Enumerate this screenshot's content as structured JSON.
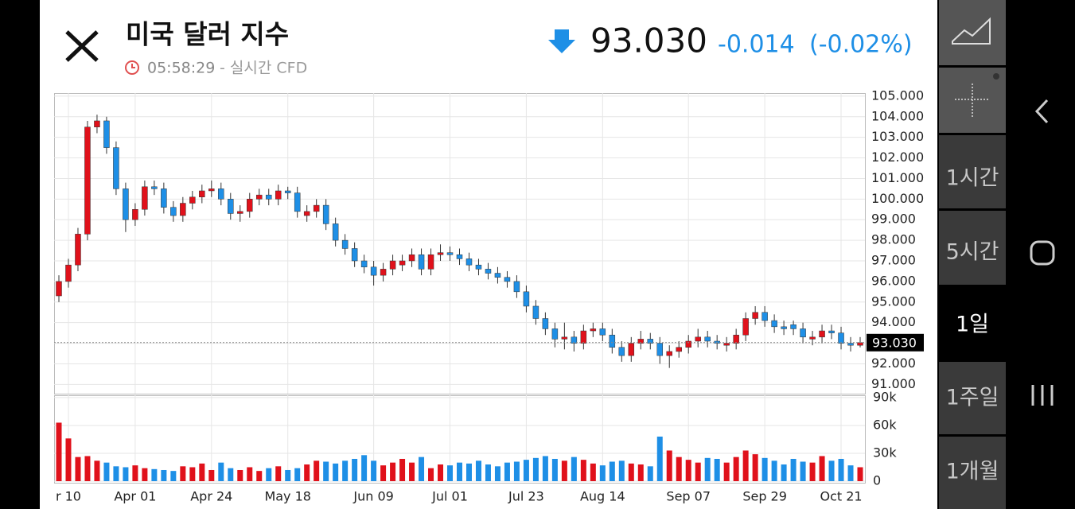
{
  "header": {
    "title": "미국 달러 지수",
    "time": "05:58:29",
    "source": "- 실시간 CFD",
    "price": "93.030",
    "change": "-0.014",
    "change_pct": "(-0.02%)"
  },
  "toolbar": {
    "intervals": [
      "1시간",
      "5시간",
      "1일",
      "1주일",
      "1개월"
    ]
  },
  "chart_data": {
    "type": "candlestick",
    "categories": [
      null,
      "r 10",
      null,
      null,
      null,
      null,
      null,
      null,
      "Apr 01",
      null,
      null,
      null,
      null,
      null,
      null,
      null,
      "Apr 24",
      null,
      null,
      null,
      null,
      null,
      null,
      null,
      "May 18",
      null,
      null,
      null,
      null,
      null,
      null,
      null,
      null,
      "Jun 09",
      null,
      null,
      null,
      null,
      null,
      null,
      null,
      "Jul 01",
      null,
      null,
      null,
      null,
      null,
      null,
      null,
      "Jul 23",
      null,
      null,
      null,
      null,
      null,
      null,
      null,
      "Aug 14",
      null,
      null,
      null,
      null,
      null,
      null,
      null,
      null,
      "Sep 07",
      null,
      null,
      null,
      null,
      null,
      null,
      null,
      "Sep 29",
      null,
      null,
      null,
      null,
      null,
      null,
      null,
      "Oct 21",
      null,
      null
    ],
    "open": [
      95.3,
      96.0,
      96.8,
      98.3,
      103.5,
      103.8,
      102.5,
      100.5,
      99.0,
      99.5,
      100.6,
      100.5,
      99.6,
      99.2,
      99.8,
      100.1,
      100.4,
      100.5,
      100.0,
      99.3,
      99.4,
      100.0,
      100.2,
      100.0,
      100.4,
      100.3,
      99.2,
      99.4,
      99.7,
      98.8,
      98.0,
      97.6,
      97.0,
      96.7,
      96.3,
      96.6,
      96.8,
      97.0,
      97.3,
      96.6,
      97.3,
      97.4,
      97.3,
      97.1,
      96.8,
      96.6,
      96.4,
      96.2,
      96.0,
      95.5,
      94.8,
      94.2,
      93.7,
      93.2,
      93.3,
      93.0,
      93.6,
      93.7,
      93.4,
      92.8,
      92.4,
      93.0,
      93.2,
      93.0,
      92.4,
      92.6,
      92.8,
      93.1,
      93.3,
      93.1,
      92.9,
      93.0,
      93.4,
      94.2,
      94.5,
      94.1,
      93.8,
      93.9,
      93.7,
      93.2,
      93.3,
      93.6,
      93.5,
      93.0,
      92.9
    ],
    "high": [
      96.3,
      97.1,
      98.6,
      103.8,
      104.1,
      104.0,
      102.8,
      100.8,
      99.8,
      100.9,
      100.9,
      100.8,
      99.9,
      100.1,
      100.4,
      100.7,
      100.9,
      100.8,
      100.3,
      99.7,
      100.3,
      100.5,
      100.5,
      100.7,
      100.6,
      100.6,
      99.7,
      100.0,
      100.0,
      99.1,
      98.3,
      97.9,
      97.3,
      97.0,
      96.9,
      97.3,
      97.3,
      97.6,
      97.6,
      97.6,
      97.8,
      97.7,
      97.6,
      97.4,
      97.1,
      96.9,
      96.7,
      96.5,
      96.3,
      95.8,
      95.1,
      94.5,
      94.0,
      94.0,
      93.6,
      93.9,
      94.0,
      94.0,
      93.7,
      93.1,
      93.3,
      93.6,
      93.5,
      93.3,
      92.9,
      93.1,
      93.4,
      93.7,
      93.6,
      93.4,
      93.3,
      93.7,
      94.5,
      94.8,
      94.8,
      94.4,
      94.1,
      94.1,
      94.0,
      93.6,
      93.9,
      93.9,
      93.8,
      93.3,
      93.3
    ],
    "low": [
      95.0,
      95.7,
      96.5,
      98.0,
      103.2,
      102.2,
      100.2,
      98.4,
      98.7,
      99.2,
      100.2,
      99.3,
      98.9,
      98.9,
      99.5,
      99.8,
      100.1,
      99.7,
      99.0,
      98.9,
      99.1,
      99.7,
      99.7,
      99.7,
      100.0,
      99.1,
      98.9,
      99.1,
      98.5,
      97.7,
      97.3,
      96.7,
      96.4,
      95.8,
      96.0,
      96.3,
      96.5,
      96.7,
      96.3,
      96.3,
      97.0,
      97.0,
      96.8,
      96.5,
      96.3,
      96.1,
      95.9,
      95.7,
      95.2,
      94.5,
      93.9,
      93.4,
      92.8,
      92.7,
      92.6,
      92.7,
      93.3,
      93.1,
      92.5,
      92.1,
      92.1,
      92.7,
      92.7,
      92.0,
      91.8,
      92.3,
      92.5,
      92.8,
      92.8,
      92.7,
      92.6,
      92.7,
      93.1,
      93.9,
      93.8,
      93.5,
      93.4,
      93.4,
      93.0,
      92.9,
      93.0,
      93.2,
      92.7,
      92.6,
      92.8
    ],
    "close": [
      96.0,
      96.8,
      98.3,
      103.5,
      103.8,
      102.5,
      100.5,
      99.0,
      99.5,
      100.6,
      100.5,
      99.6,
      99.2,
      99.8,
      100.1,
      100.4,
      100.5,
      100.0,
      99.3,
      99.4,
      100.0,
      100.2,
      100.0,
      100.4,
      100.3,
      99.4,
      99.4,
      99.7,
      98.8,
      98.0,
      97.6,
      97.0,
      96.7,
      96.3,
      96.6,
      97.0,
      97.0,
      97.3,
      96.6,
      97.3,
      97.4,
      97.3,
      97.1,
      96.8,
      96.6,
      96.4,
      96.2,
      96.0,
      95.5,
      94.8,
      94.2,
      93.7,
      93.2,
      93.3,
      93.0,
      93.6,
      93.7,
      93.4,
      92.8,
      92.4,
      93.0,
      93.2,
      93.0,
      92.4,
      92.6,
      92.8,
      93.1,
      93.3,
      93.1,
      93.0,
      93.0,
      93.4,
      94.2,
      94.5,
      94.1,
      93.8,
      93.7,
      93.7,
      93.3,
      93.3,
      93.6,
      93.5,
      93.0,
      92.9,
      93.03
    ],
    "volume": [
      63000,
      46000,
      26000,
      27000,
      22000,
      20000,
      16000,
      15000,
      17000,
      14000,
      13000,
      12000,
      11000,
      16000,
      15000,
      19000,
      12000,
      20000,
      14000,
      12000,
      15000,
      11000,
      14000,
      16000,
      12000,
      14000,
      18000,
      22000,
      21000,
      19000,
      22000,
      24000,
      28000,
      22000,
      17000,
      20000,
      24000,
      20000,
      26000,
      14000,
      18000,
      17000,
      20000,
      19000,
      22000,
      18000,
      16000,
      20000,
      21000,
      23000,
      25000,
      27000,
      24000,
      22000,
      26000,
      23000,
      19000,
      17000,
      21000,
      22000,
      19000,
      18000,
      16000,
      48000,
      33000,
      26000,
      23000,
      20000,
      25000,
      24000,
      20000,
      26000,
      33000,
      29000,
      25000,
      22000,
      18000,
      24000,
      21000,
      20000,
      27000,
      22000,
      24000,
      17000,
      15000
    ],
    "up_color": "#e0111b",
    "down_color": "#1e8fe6",
    "ylim": [
      90.55,
      105.15
    ],
    "yticks": [
      {
        "value": 91,
        "label": "91.000"
      },
      {
        "value": 92,
        "label": "92.000"
      },
      {
        "value": 93,
        "label": "93.000"
      },
      {
        "value": 94,
        "label": "94.000"
      },
      {
        "value": 95,
        "label": "95.000"
      },
      {
        "value": 96,
        "label": "96.000"
      },
      {
        "value": 97,
        "label": "97.000"
      },
      {
        "value": 98,
        "label": "98.000"
      },
      {
        "value": 99,
        "label": "99.000"
      },
      {
        "value": 100,
        "label": "100.000"
      },
      {
        "value": 101,
        "label": "101.000"
      },
      {
        "value": 102,
        "label": "102.000"
      },
      {
        "value": 103,
        "label": "103.000"
      },
      {
        "value": 104,
        "label": "104.000"
      },
      {
        "value": 105,
        "label": "105.000"
      }
    ],
    "volume_ylim": [
      0,
      92500
    ],
    "volume_yticks": [
      0,
      {
        "value": 30000,
        "label": "30k"
      },
      {
        "value": 60000,
        "label": "60k"
      },
      {
        "value": 90000,
        "label": "90k"
      }
    ],
    "last_price": {
      "value": 93.03,
      "label": "93.030"
    },
    "grid": true
  }
}
